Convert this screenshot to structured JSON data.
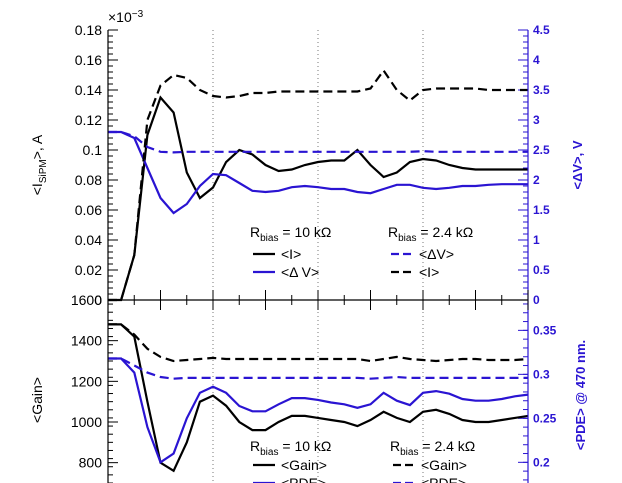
{
  "chart_data": [
    {
      "type": "line",
      "panel": "top",
      "x": [
        0,
        0.25,
        0.5,
        0.75,
        1,
        1.25,
        1.5,
        1.75,
        2,
        2.25,
        2.5,
        2.75,
        3,
        3.25,
        3.5,
        3.75,
        4,
        4.25,
        4.5,
        4.75,
        5,
        5.25,
        5.5,
        5.75,
        6,
        6.25,
        6.5,
        6.75,
        7,
        7.25,
        7.5,
        7.75,
        8
      ],
      "ylabel_left": "<I",
      "ylabel_left_sub": "SiPM",
      "ylabel_left_unit": ">, A",
      "ylabel_right": "<ΔV>, V",
      "left_exponent_base": "×10",
      "left_exponent_power": "−3",
      "ylim_left": [
        0,
        0.18
      ],
      "ylim_right": [
        0,
        4.5
      ],
      "left_ticks": [
        "0",
        "0.02",
        "0.04",
        "0.06",
        "0.08",
        "0.1",
        "0.12",
        "0.14",
        "0.16",
        "0.18"
      ],
      "right_ticks": [
        "0",
        "0.5",
        "1",
        "1.5",
        "2",
        "2.5",
        "3",
        "3.5",
        "4",
        "4.5"
      ],
      "series": [
        {
          "axis": "left",
          "color": "#000000",
          "dash": "solid",
          "values": [
            0,
            0,
            0.03,
            0.11,
            0.135,
            0.125,
            0.085,
            0.068,
            0.075,
            0.092,
            0.1,
            0.097,
            0.09,
            0.086,
            0.087,
            0.09,
            0.092,
            0.093,
            0.093,
            0.1,
            0.09,
            0.082,
            0.085,
            0.092,
            0.094,
            0.093,
            0.09,
            0.088,
            0.087,
            0.087,
            0.087,
            0.087,
            0.087
          ]
        },
        {
          "axis": "right",
          "color": "#2a14d2",
          "dash": "solid",
          "values": [
            2.8,
            2.8,
            2.7,
            2.2,
            1.7,
            1.45,
            1.6,
            1.9,
            2.1,
            2.08,
            1.95,
            1.82,
            1.8,
            1.82,
            1.88,
            1.9,
            1.88,
            1.85,
            1.85,
            1.8,
            1.78,
            1.85,
            1.92,
            1.92,
            1.87,
            1.85,
            1.87,
            1.9,
            1.9,
            1.92,
            1.93,
            1.93,
            1.93
          ]
        },
        {
          "axis": "right",
          "color": "#2a14d2",
          "dash": "dashed",
          "values": [
            2.8,
            2.8,
            2.73,
            2.55,
            2.47,
            2.46,
            2.47,
            2.47,
            2.47,
            2.47,
            2.47,
            2.47,
            2.47,
            2.47,
            2.47,
            2.47,
            2.47,
            2.47,
            2.47,
            2.47,
            2.47,
            2.47,
            2.47,
            2.47,
            2.48,
            2.47,
            2.47,
            2.47,
            2.47,
            2.47,
            2.47,
            2.47,
            2.47
          ]
        },
        {
          "axis": "left",
          "color": "#000000",
          "dash": "dashed",
          "values": [
            0,
            0,
            0.03,
            0.12,
            0.143,
            0.15,
            0.148,
            0.14,
            0.136,
            0.135,
            0.136,
            0.138,
            0.138,
            0.139,
            0.139,
            0.139,
            0.139,
            0.139,
            0.139,
            0.139,
            0.141,
            0.153,
            0.14,
            0.133,
            0.14,
            0.141,
            0.141,
            0.141,
            0.141,
            0.14,
            0.14,
            0.14,
            0.14
          ]
        }
      ],
      "legend": [
        {
          "header": true,
          "text": "R",
          "sub": "bias",
          "rest": " = 10 kΩ"
        },
        {
          "header": true,
          "text": "R",
          "sub": "bias",
          "rest": " = 2.4 kΩ"
        },
        {
          "text": "<I>",
          "color": "#000000",
          "dash": "solid"
        },
        {
          "text": "<ΔV>",
          "color": "#2a14d2",
          "dash": "dashed"
        },
        {
          "text": "<Δ V>",
          "color": "#2a14d2",
          "dash": "solid"
        },
        {
          "text": "<I>",
          "color": "#000000",
          "dash": "dashed"
        }
      ]
    },
    {
      "type": "line",
      "panel": "bottom",
      "x": [
        0,
        0.25,
        0.5,
        0.75,
        1,
        1.25,
        1.5,
        1.75,
        2,
        2.25,
        2.5,
        2.75,
        3,
        3.25,
        3.5,
        3.75,
        4,
        4.25,
        4.5,
        4.75,
        5,
        5.25,
        5.5,
        5.75,
        6,
        6.25,
        6.5,
        6.75,
        7,
        7.25,
        7.5,
        7.75,
        8
      ],
      "ylabel_left": "<Gain>",
      "ylabel_right": "<PDE> @ 470 nm.",
      "ylim_left": [
        700,
        1600
      ],
      "ylim_right": [
        0.1765,
        0.3845
      ],
      "left_ticks": [
        "800",
        "1000",
        "1200",
        "1400",
        "1600"
      ],
      "right_ticks": [
        "0.2",
        "0.25",
        "0.3",
        "0.35"
      ],
      "series": [
        {
          "axis": "left",
          "color": "#000000",
          "dash": "solid",
          "values": [
            1480,
            1480,
            1420,
            1100,
            800,
            760,
            900,
            1100,
            1130,
            1080,
            1000,
            960,
            960,
            1000,
            1030,
            1030,
            1020,
            1010,
            1000,
            980,
            1010,
            1050,
            1020,
            1000,
            1050,
            1060,
            1040,
            1010,
            1000,
            1000,
            1010,
            1020,
            1030
          ]
        },
        {
          "axis": "right",
          "color": "#2a14d2",
          "dash": "solid",
          "values": [
            0.318,
            0.318,
            0.302,
            0.24,
            0.2,
            0.21,
            0.25,
            0.279,
            0.286,
            0.279,
            0.264,
            0.258,
            0.258,
            0.266,
            0.273,
            0.273,
            0.271,
            0.268,
            0.266,
            0.262,
            0.266,
            0.279,
            0.27,
            0.265,
            0.279,
            0.281,
            0.278,
            0.272,
            0.27,
            0.27,
            0.272,
            0.275,
            0.277
          ]
        },
        {
          "axis": "left",
          "color": "#000000",
          "dash": "dashed",
          "values": [
            1480,
            1480,
            1430,
            1360,
            1320,
            1300,
            1305,
            1310,
            1315,
            1310,
            1310,
            1310,
            1310,
            1310,
            1310,
            1310,
            1310,
            1310,
            1310,
            1310,
            1300,
            1310,
            1320,
            1310,
            1305,
            1300,
            1305,
            1310,
            1310,
            1305,
            1305,
            1305,
            1310
          ]
        },
        {
          "axis": "right",
          "color": "#2a14d2",
          "dash": "dashed",
          "values": [
            0.318,
            0.318,
            0.31,
            0.302,
            0.297,
            0.295,
            0.296,
            0.296,
            0.296,
            0.296,
            0.296,
            0.296,
            0.296,
            0.296,
            0.296,
            0.296,
            0.296,
            0.296,
            0.296,
            0.296,
            0.295,
            0.296,
            0.297,
            0.296,
            0.296,
            0.296,
            0.296,
            0.296,
            0.296,
            0.296,
            0.296,
            0.296,
            0.296
          ]
        }
      ],
      "legend": [
        {
          "header": true,
          "text": "R",
          "sub": "bias",
          "rest": " = 10 kΩ"
        },
        {
          "header": true,
          "text": "R",
          "sub": "bias",
          "rest": " = 2.4 kΩ"
        },
        {
          "text": "<Gain>",
          "color": "#000000",
          "dash": "solid"
        },
        {
          "text": "<Gain>",
          "color": "#000000",
          "dash": "dashed"
        },
        {
          "text": "<PDE>",
          "color": "#2a14d2",
          "dash": "solid"
        },
        {
          "text": "<PDE>",
          "color": "#2a14d2",
          "dash": "dashed"
        }
      ]
    }
  ],
  "vertical_grid_x": [
    2,
    4,
    6
  ]
}
